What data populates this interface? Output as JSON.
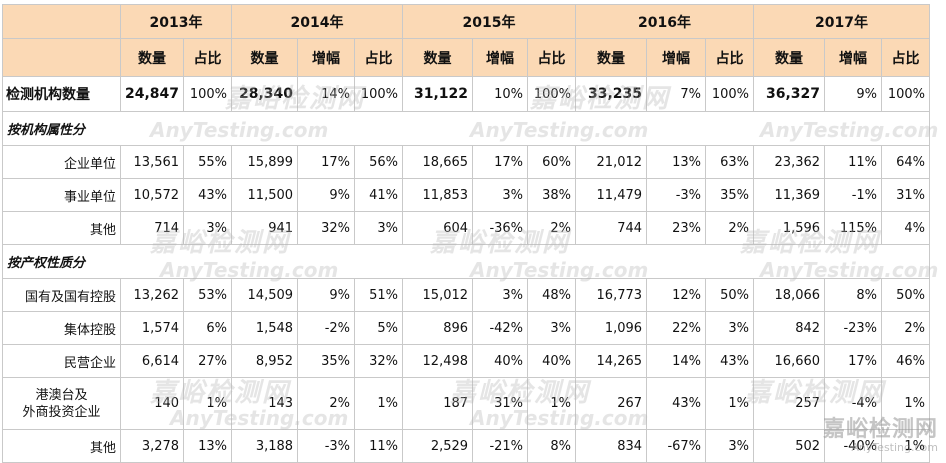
{
  "years": [
    "2013年",
    "2014年",
    "2015年",
    "2016年",
    "2017年"
  ],
  "col_labels": {
    "count": "数量",
    "ratio": "占比",
    "growth": "增幅"
  },
  "total": {
    "label": "检测机构数量",
    "cells": [
      "24,847",
      "100%",
      "28,340",
      "14%",
      "100%",
      "31,122",
      "10%",
      "100%",
      "33,235",
      "7%",
      "100%",
      "36,327",
      "9%",
      "100%"
    ]
  },
  "sections": [
    {
      "title": "按机构属性分",
      "rows": [
        {
          "label": "企业单位",
          "cells": [
            "13,561",
            "55%",
            "15,899",
            "17%",
            "56%",
            "18,665",
            "17%",
            "60%",
            "21,012",
            "13%",
            "63%",
            "23,362",
            "11%",
            "64%"
          ]
        },
        {
          "label": "事业单位",
          "cells": [
            "10,572",
            "43%",
            "11,500",
            "9%",
            "41%",
            "11,853",
            "3%",
            "38%",
            "11,479",
            "-3%",
            "35%",
            "11,369",
            "-1%",
            "31%"
          ]
        },
        {
          "label": "其他",
          "cells": [
            "714",
            "3%",
            "941",
            "32%",
            "3%",
            "604",
            "-36%",
            "2%",
            "744",
            "23%",
            "2%",
            "1,596",
            "115%",
            "4%"
          ]
        }
      ]
    },
    {
      "title": "按产权性质分",
      "rows": [
        {
          "label": "国有及国有控股",
          "cells": [
            "13,262",
            "53%",
            "14,509",
            "9%",
            "51%",
            "15,012",
            "3%",
            "48%",
            "16,773",
            "12%",
            "50%",
            "18,066",
            "8%",
            "50%"
          ]
        },
        {
          "label": "集体控股",
          "cells": [
            "1,574",
            "6%",
            "1,548",
            "-2%",
            "5%",
            "896",
            "-42%",
            "3%",
            "1,096",
            "22%",
            "3%",
            "842",
            "-23%",
            "2%"
          ]
        },
        {
          "label": "民营企业",
          "cells": [
            "6,614",
            "27%",
            "8,952",
            "35%",
            "32%",
            "12,498",
            "40%",
            "40%",
            "14,265",
            "14%",
            "43%",
            "16,660",
            "17%",
            "46%"
          ]
        },
        {
          "label": "港澳台及外商投资企业",
          "label_lines": [
            "港澳台及",
            "外商投资企业"
          ],
          "cells": [
            "140",
            "1%",
            "143",
            "2%",
            "1%",
            "187",
            "31%",
            "1%",
            "267",
            "43%",
            "1%",
            "257",
            "-4%",
            "1%"
          ]
        },
        {
          "label": "其他",
          "cells": [
            "3,278",
            "13%",
            "3,188",
            "-3%",
            "11%",
            "2,529",
            "-21%",
            "8%",
            "834",
            "-67%",
            "3%",
            "502",
            "-40%",
            "1%"
          ]
        }
      ]
    }
  ],
  "watermark": {
    "cn": "嘉峪检测网",
    "en": "AnyTesting.com"
  }
}
